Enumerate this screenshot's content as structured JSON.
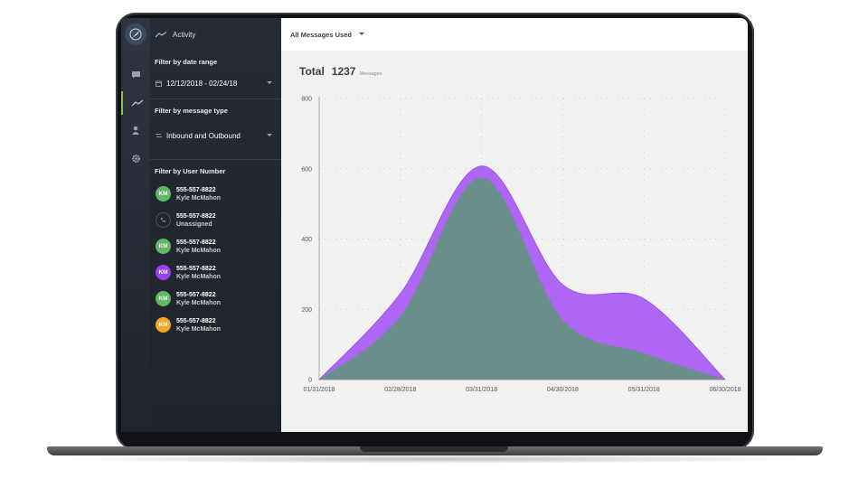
{
  "sidebar": {
    "nav_title": "Activity",
    "date_filter": {
      "title": "Filter by date range",
      "value": "12/12/2018 - 02/24/18"
    },
    "type_filter": {
      "title": "Filter by message type",
      "value": "Inbound and Outbound"
    },
    "user_filter": {
      "title": "Filter by User Number",
      "users": [
        {
          "number": "555-557-8822",
          "name": "Kyle McMahon",
          "initials": "KM",
          "color": "#5fb865"
        },
        {
          "number": "555-557-8822",
          "name": "Unassigned",
          "initials": "",
          "color": "#2a2f37"
        },
        {
          "number": "555-557-8822",
          "name": "Kyle McMahon",
          "initials": "KM",
          "color": "#5fb865"
        },
        {
          "number": "555-557-8822",
          "name": "Kyle McMahon",
          "initials": "KM",
          "color": "#9b3ff0"
        },
        {
          "number": "555-557-8822",
          "name": "Kyle McMahon",
          "initials": "KM",
          "color": "#5fb865"
        },
        {
          "number": "555-557-8822",
          "name": "Kyle McMahon",
          "initials": "KM",
          "color": "#f5a623"
        }
      ]
    }
  },
  "rail": {
    "icons": [
      "chat-icon",
      "activity-icon",
      "user-icon",
      "settings-icon"
    ],
    "active_color": "#8dc63f"
  },
  "header": {
    "metric_select": "All Messages Used"
  },
  "summary": {
    "label": "Total",
    "value": "1237",
    "unit": "Messages"
  },
  "chart_data": {
    "type": "area",
    "x": [
      "01/31/2018",
      "02/28/2018",
      "03/31/2018",
      "04/30/2018",
      "05/31/2018",
      "06/30/2018"
    ],
    "ylim": [
      0,
      800
    ],
    "yticks": [
      0,
      200,
      400,
      600,
      800
    ],
    "grid": true,
    "series": [
      {
        "values": [
          0,
          245,
          608,
          270,
          230,
          0
        ],
        "color": "#b066f5"
      },
      {
        "values": [
          0,
          180,
          575,
          170,
          75,
          0
        ],
        "color": "#6a8e8a"
      }
    ]
  }
}
